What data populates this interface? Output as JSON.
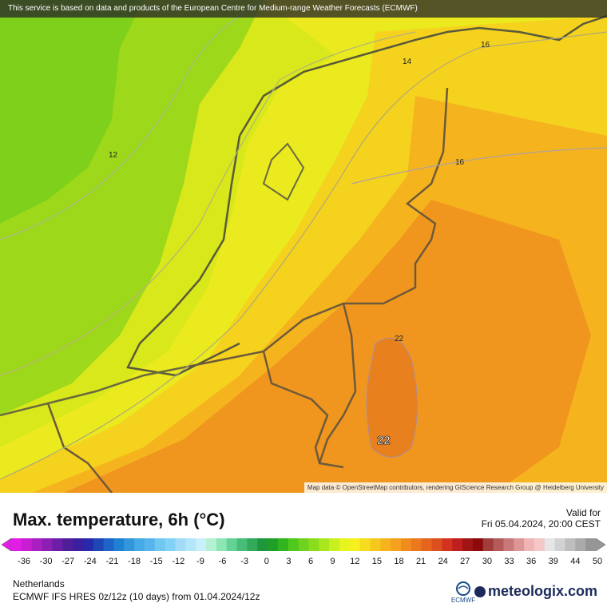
{
  "attribution_top": "This service is based on data and products of the European Centre for Medium-range Weather Forecasts (ECMWF)",
  "attribution_bottom": "Map data © OpenStreetMap contributors, rendering GIScience Research Group @ Heidelberg University",
  "title": "Max. temperature, 6h (°C)",
  "valid_label": "Valid for",
  "valid_time": "Fri 05.04.2024, 20:00 CEST",
  "region": "Netherlands",
  "model_info": "ECMWF IFS HRES 0z/12z (10 days) from 01.04.2024/12z",
  "brand": "meteologix.com",
  "brand_logo_label": "ECMWF",
  "contour_labels": [
    "16",
    "14",
    "12",
    "16",
    "22",
    "22"
  ],
  "scale_labels": [
    "-36",
    "-30",
    "-27",
    "-24",
    "-21",
    "-18",
    "-15",
    "-12",
    "-9",
    "-6",
    "-3",
    "0",
    "3",
    "6",
    "9",
    "12",
    "15",
    "18",
    "21",
    "24",
    "27",
    "30",
    "33",
    "36",
    "39",
    "44",
    "50"
  ],
  "scale_colors": [
    "#e21ee6",
    "#c81ed2",
    "#aa1ec2",
    "#8c1eb4",
    "#6e1ea6",
    "#501e96",
    "#3c1ea0",
    "#2828aa",
    "#1e46b4",
    "#1e64c8",
    "#1e82d2",
    "#3296dc",
    "#46aae6",
    "#5ab4ec",
    "#6ec8f0",
    "#82d2f5",
    "#a0dcf8",
    "#b4e6fa",
    "#c8f0fc",
    "#b4f0d2",
    "#8ce6b4",
    "#64d296",
    "#46be78",
    "#32aa5a",
    "#1e963c",
    "#1ea028",
    "#32b41e",
    "#50c81e",
    "#6ed21e",
    "#8cdc1e",
    "#aae61e",
    "#c8f01e",
    "#e6f51e",
    "#f5f01e",
    "#f5dc1e",
    "#f5c81e",
    "#f5b41e",
    "#f5a01e",
    "#f08c1e",
    "#eb781e",
    "#e6641e",
    "#dc501e",
    "#d2321e",
    "#be1e1e",
    "#a01414",
    "#8c0a0a",
    "#a03c3c",
    "#b45a5a",
    "#c87878",
    "#dc9696",
    "#f0b4b4",
    "#f5c8c8",
    "#e6e6e6",
    "#d2d2d2",
    "#bebebe",
    "#aaaaaa",
    "#969696"
  ]
}
